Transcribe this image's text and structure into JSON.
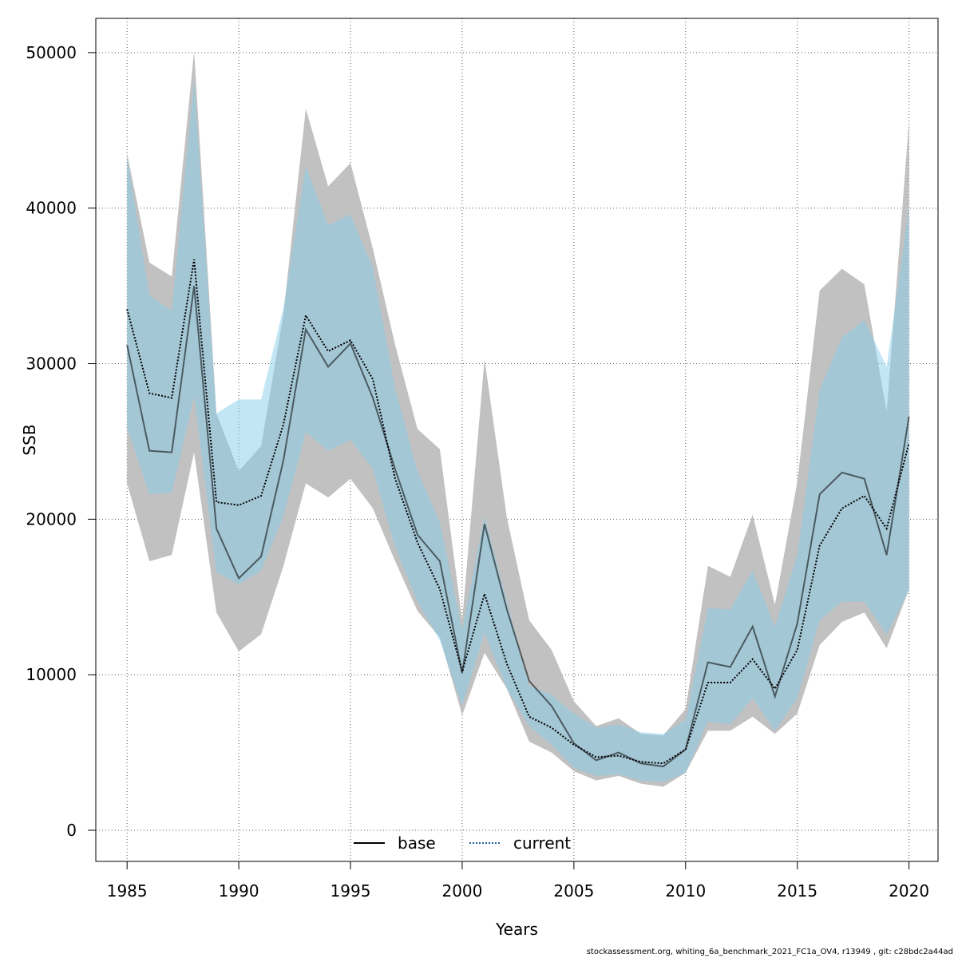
{
  "chart_data": {
    "type": "area",
    "xlabel": "Years",
    "ylabel": "SSB",
    "xlim": [
      1983.6,
      2021.3
    ],
    "ylim": [
      -2000,
      52200
    ],
    "x_ticks": [
      1985,
      1990,
      1995,
      2000,
      2005,
      2010,
      2015,
      2020
    ],
    "y_ticks": [
      0,
      10000,
      20000,
      30000,
      40000,
      50000
    ],
    "grid": true,
    "legend_position": "bottom-center",
    "x": [
      1985,
      1986,
      1987,
      1988,
      1989,
      1990,
      1991,
      1992,
      1993,
      1994,
      1995,
      1996,
      1997,
      1998,
      1999,
      2000,
      2001,
      2002,
      2003,
      2004,
      2005,
      2006,
      2007,
      2008,
      2009,
      2010,
      2011,
      2012,
      2013,
      2014,
      2015,
      2016,
      2017,
      2018,
      2019,
      2020
    ],
    "series": [
      {
        "name": "base",
        "line_style": "solid",
        "line_color": "#000000",
        "band_color": "#bebebe",
        "values": [
          31200,
          24400,
          24300,
          35000,
          19400,
          16200,
          17600,
          23800,
          32200,
          29800,
          31300,
          27800,
          23200,
          19000,
          17300,
          10100,
          19700,
          14200,
          9600,
          8000,
          5600,
          4500,
          5000,
          4300,
          4100,
          5200,
          10800,
          10500,
          13100,
          8600,
          13300,
          21600,
          23000,
          22600,
          17700,
          26600
        ],
        "lower": [
          22300,
          17300,
          17700,
          24300,
          14000,
          11500,
          12600,
          17000,
          22300,
          21400,
          22600,
          20700,
          17300,
          14100,
          12400,
          7400,
          11400,
          9100,
          5700,
          5000,
          3800,
          3200,
          3500,
          3000,
          2800,
          3700,
          6400,
          6400,
          7300,
          6200,
          7500,
          11900,
          13400,
          14000,
          11700,
          15500
        ],
        "upper": [
          43500,
          36500,
          35600,
          50100,
          26800,
          23100,
          24700,
          33200,
          46400,
          41400,
          42900,
          37400,
          31200,
          25800,
          24500,
          13500,
          30300,
          20100,
          13500,
          11600,
          8300,
          6700,
          7200,
          6200,
          6100,
          7800,
          17000,
          16300,
          20300,
          14500,
          22400,
          34700,
          36100,
          35100,
          26900,
          45600
        ]
      },
      {
        "name": "current",
        "line_style": "dotted",
        "line_color": "#000000",
        "band_color": "#87ceeb",
        "values": [
          33500,
          28100,
          27800,
          36700,
          21100,
          20900,
          21500,
          26100,
          33100,
          30800,
          31500,
          29000,
          22600,
          18500,
          15500,
          10200,
          15200,
          10700,
          7300,
          6600,
          5500,
          4700,
          4800,
          4400,
          4300,
          5200,
          9500,
          9500,
          11000,
          9100,
          11600,
          18300,
          20700,
          21500,
          19400,
          24900
        ],
        "lower": [
          25900,
          21600,
          21700,
          27900,
          16600,
          15800,
          16700,
          20200,
          25600,
          24400,
          25100,
          23200,
          18200,
          14700,
          12200,
          8000,
          12700,
          9100,
          6700,
          5500,
          4000,
          3500,
          3600,
          3200,
          3100,
          3700,
          7000,
          6800,
          8500,
          6400,
          8500,
          13500,
          14700,
          14700,
          12600,
          15400
        ],
        "upper": [
          43300,
          34400,
          33400,
          48200,
          26800,
          27700,
          27700,
          33600,
          42700,
          38900,
          39600,
          36200,
          28400,
          23100,
          19800,
          12900,
          20200,
          14700,
          9300,
          8700,
          7500,
          6600,
          6800,
          6300,
          6200,
          7100,
          14300,
          14200,
          16700,
          13100,
          17700,
          28300,
          31700,
          32800,
          29800,
          40000
        ]
      }
    ]
  },
  "footer_text": "stockassessment.org, whiting_6a_benchmark_2021_FC1a_OV4, r13949 , git: c28bdc2a44ad"
}
